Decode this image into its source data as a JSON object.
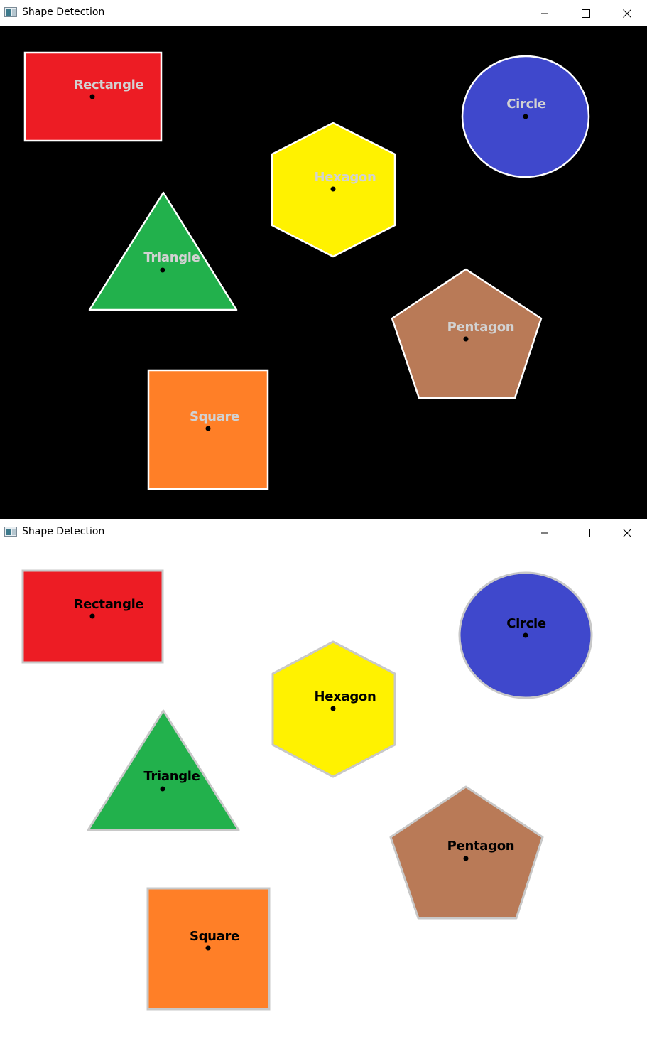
{
  "windows": [
    {
      "title": "Shape Detection",
      "canvas_background": "#000000",
      "label_color": "#d2d2d2",
      "outline_color": "#ffffff",
      "center_dot_color": "#000000"
    },
    {
      "title": "Shape Detection",
      "canvas_background": "#ffffff",
      "label_color": "#000000",
      "outline_color": "#c8c8c8",
      "center_dot_color": "#000000"
    }
  ],
  "shapes": [
    {
      "name": "Rectangle",
      "fill": "#ed1c24"
    },
    {
      "name": "Circle",
      "fill": "#3f48cc"
    },
    {
      "name": "Hexagon",
      "fill": "#fff200"
    },
    {
      "name": "Triangle",
      "fill": "#22b14c"
    },
    {
      "name": "Pentagon",
      "fill": "#b97a57"
    },
    {
      "name": "Square",
      "fill": "#ff7f27"
    }
  ],
  "icons": {
    "app": "app-window-icon",
    "minimize": "minimize-icon",
    "maximize": "maximize-icon",
    "close": "close-icon"
  }
}
